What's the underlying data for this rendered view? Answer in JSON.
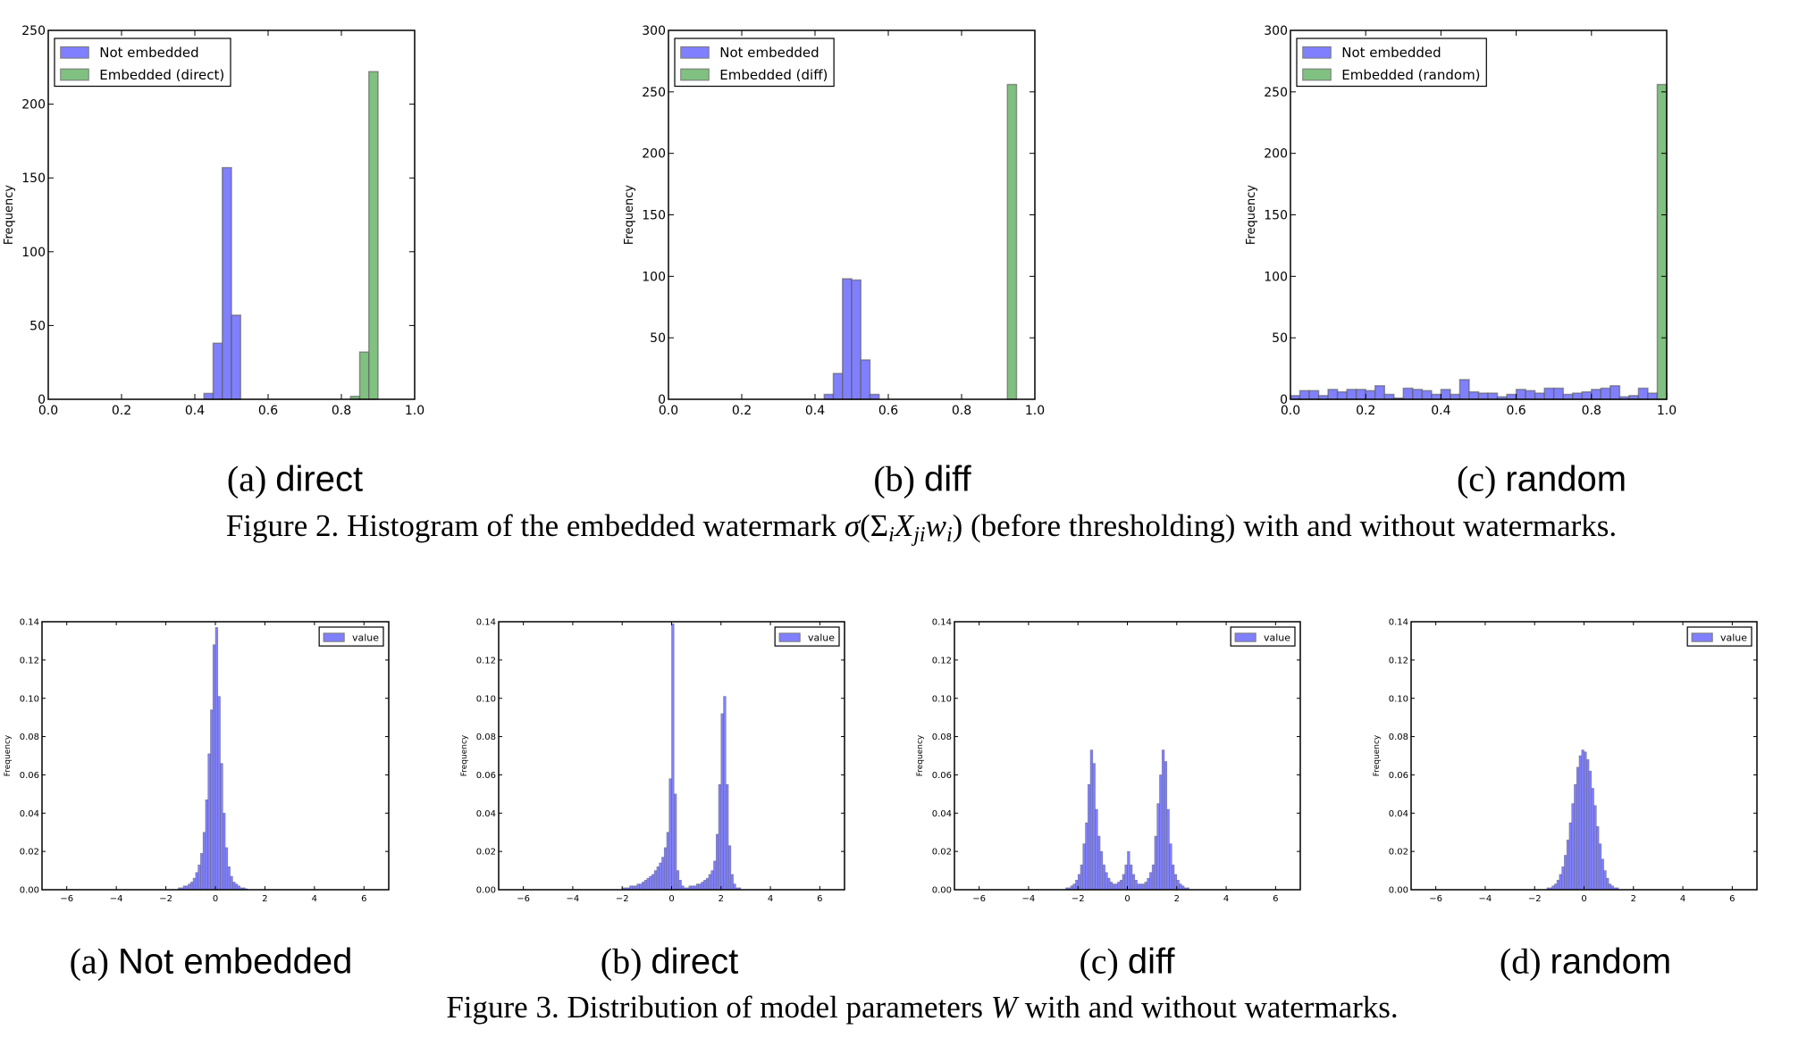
{
  "figure2": {
    "subcaptions": [
      {
        "label": "(a)",
        "text": "direct"
      },
      {
        "label": "(b)",
        "text": "diff"
      },
      {
        "label": "(c)",
        "text": "random"
      }
    ],
    "caption": {
      "prefix": "Figure 2. Histogram of the embedded watermark",
      "sigma": "σ",
      "open": "(Σ",
      "sub1": "i",
      "X": "X",
      "sub2": "ji",
      "w": "w",
      "sub3": "i",
      "close": ")",
      "suffix": "(before thresholding) with and without watermarks."
    }
  },
  "figure3": {
    "subcaptions": [
      {
        "label": "(a)",
        "text": "Not embedded"
      },
      {
        "label": "(b)",
        "text": "direct"
      },
      {
        "label": "(c)",
        "text": "diff"
      },
      {
        "label": "(d)",
        "text": "random"
      }
    ],
    "caption": {
      "prefix": "Figure 3. Distribution of model parameters",
      "W": "W",
      "suffix": "with and without watermarks."
    }
  },
  "colors": {
    "not_embedded": "#8080ff",
    "embedded": "#80c080",
    "edge": "#5a5a5a"
  },
  "chart_data": [
    {
      "type": "bar",
      "subtype": "histogram",
      "ylabel": "Frequency",
      "xlim": [
        0,
        1.0
      ],
      "ylim": [
        0,
        250
      ],
      "xticks": [
        "0.0",
        "0.2",
        "0.4",
        "0.6",
        "0.8",
        "1.0"
      ],
      "yticks": [
        "0",
        "50",
        "100",
        "150",
        "200",
        "250"
      ],
      "legend_placement": "top-left",
      "grid": false,
      "series": [
        {
          "name": "Not embedded",
          "color": "not_embedded",
          "bin_start": 0.425,
          "bin_width": 0.025,
          "values": [
            4,
            38,
            157,
            57
          ]
        },
        {
          "name": "Embedded (direct)",
          "color": "embedded",
          "bin_start": 0.825,
          "bin_width": 0.025,
          "values": [
            2,
            32,
            222
          ]
        }
      ]
    },
    {
      "type": "bar",
      "subtype": "histogram",
      "ylabel": "Frequency",
      "xlim": [
        0,
        1.0
      ],
      "ylim": [
        0,
        300
      ],
      "xticks": [
        "0.0",
        "0.2",
        "0.4",
        "0.6",
        "0.8",
        "1.0"
      ],
      "yticks": [
        "0",
        "50",
        "100",
        "150",
        "200",
        "250",
        "300"
      ],
      "legend_placement": "top-left",
      "grid": false,
      "series": [
        {
          "name": "Not embedded",
          "color": "not_embedded",
          "bin_start": 0.425,
          "bin_width": 0.025,
          "values": [
            4,
            21,
            98,
            97,
            32,
            4
          ]
        },
        {
          "name": "Embedded (diff)",
          "color": "embedded",
          "bin_start": 0.925,
          "bin_width": 0.025,
          "values": [
            256
          ]
        }
      ]
    },
    {
      "type": "bar",
      "subtype": "histogram",
      "ylabel": "Frequency",
      "xlim": [
        0,
        1.0
      ],
      "ylim": [
        0,
        300
      ],
      "xticks": [
        "0.0",
        "0.2",
        "0.4",
        "0.6",
        "0.8",
        "1.0"
      ],
      "yticks": [
        "0",
        "50",
        "100",
        "150",
        "200",
        "250",
        "300"
      ],
      "legend_placement": "top-left",
      "grid": false,
      "series": [
        {
          "name": "Not embedded",
          "color": "not_embedded",
          "bin_start": 0.0,
          "bin_width": 0.025,
          "values": [
            3,
            7,
            7,
            3,
            8,
            6,
            8,
            8,
            7,
            11,
            4,
            1,
            9,
            8,
            7,
            4,
            8,
            4,
            16,
            6,
            5,
            5,
            2,
            4,
            8,
            7,
            5,
            9,
            9,
            4,
            5,
            6,
            8,
            9,
            11,
            2,
            3,
            9,
            5,
            5
          ]
        },
        {
          "name": "Embedded (random)",
          "color": "embedded",
          "bin_start": 0.975,
          "bin_width": 0.025,
          "values": [
            256
          ]
        }
      ]
    },
    {
      "type": "bar",
      "subtype": "histogram",
      "ylabel": "Frequency",
      "xlim": [
        -7,
        7
      ],
      "ylim": [
        0,
        0.14
      ],
      "xticks": [
        "−6",
        "−4",
        "−2",
        "0",
        "2",
        "4",
        "6"
      ],
      "yticks": [
        "0.00",
        "0.02",
        "0.04",
        "0.06",
        "0.08",
        "0.10",
        "0.12",
        "0.14"
      ],
      "legend_placement": "top-right",
      "grid": false,
      "series": [
        {
          "name": "value",
          "color": "not_embedded",
          "bin_start": -1.5,
          "bin_width": 0.1,
          "values": [
            0.001,
            0.001,
            0.002,
            0.002,
            0.003,
            0.004,
            0.006,
            0.009,
            0.013,
            0.019,
            0.03,
            0.047,
            0.071,
            0.094,
            0.128,
            0.137,
            0.101,
            0.066,
            0.04,
            0.022,
            0.012,
            0.007,
            0.004,
            0.003,
            0.002,
            0.001,
            0.001,
            0.0005
          ]
        }
      ]
    },
    {
      "type": "bar",
      "subtype": "histogram",
      "ylabel": "Frequency",
      "xlim": [
        -7,
        7
      ],
      "ylim": [
        0,
        0.14
      ],
      "xticks": [
        "−6",
        "−4",
        "−2",
        "0",
        "2",
        "4",
        "6"
      ],
      "yticks": [
        "0.00",
        "0.02",
        "0.04",
        "0.06",
        "0.08",
        "0.10",
        "0.12",
        "0.14"
      ],
      "legend_placement": "top-right",
      "grid": false,
      "series": [
        {
          "name": "value",
          "color": "not_embedded",
          "bin_start": -2.0,
          "bin_width": 0.1,
          "values": [
            0.001,
            0.001,
            0.001,
            0.002,
            0.002,
            0.002,
            0.003,
            0.003,
            0.004,
            0.005,
            0.006,
            0.007,
            0.008,
            0.01,
            0.012,
            0.014,
            0.017,
            0.022,
            0.03,
            0.058,
            0.139,
            0.05,
            0.01,
            0.005,
            0.002,
            0.001,
            0.001,
            0.002,
            0.002,
            0.002,
            0.003,
            0.003,
            0.004,
            0.005,
            0.006,
            0.008,
            0.01,
            0.015,
            0.029,
            0.055,
            0.092,
            0.101,
            0.055,
            0.023,
            0.008,
            0.003,
            0.001,
            0.001
          ]
        }
      ]
    },
    {
      "type": "bar",
      "subtype": "histogram",
      "ylabel": "Frequency",
      "xlim": [
        -7,
        7
      ],
      "ylim": [
        0,
        0.14
      ],
      "xticks": [
        "−6",
        "−4",
        "−2",
        "0",
        "2",
        "4",
        "6"
      ],
      "yticks": [
        "0.00",
        "0.02",
        "0.04",
        "0.06",
        "0.08",
        "0.10",
        "0.12",
        "0.14"
      ],
      "legend_placement": "top-right",
      "grid": false,
      "series": [
        {
          "name": "value",
          "color": "not_embedded",
          "bin_start": -2.5,
          "bin_width": 0.1,
          "values": [
            0.001,
            0.001,
            0.002,
            0.003,
            0.005,
            0.008,
            0.013,
            0.024,
            0.035,
            0.055,
            0.073,
            0.066,
            0.042,
            0.028,
            0.02,
            0.013,
            0.009,
            0.006,
            0.004,
            0.003,
            0.003,
            0.004,
            0.005,
            0.008,
            0.013,
            0.02,
            0.013,
            0.008,
            0.005,
            0.003,
            0.003,
            0.003,
            0.004,
            0.006,
            0.009,
            0.013,
            0.028,
            0.045,
            0.06,
            0.073,
            0.067,
            0.042,
            0.024,
            0.013,
            0.008,
            0.005,
            0.003,
            0.002,
            0.001,
            0.001
          ]
        }
      ]
    },
    {
      "type": "bar",
      "subtype": "histogram",
      "ylabel": "Frequency",
      "xlim": [
        -7,
        7
      ],
      "ylim": [
        0,
        0.14
      ],
      "xticks": [
        "−6",
        "−4",
        "−2",
        "0",
        "2",
        "4",
        "6"
      ],
      "yticks": [
        "0.00",
        "0.02",
        "0.04",
        "0.06",
        "0.08",
        "0.10",
        "0.12",
        "0.14"
      ],
      "legend_placement": "top-right",
      "grid": false,
      "series": [
        {
          "name": "value",
          "color": "not_embedded",
          "bin_start": -1.5,
          "bin_width": 0.1,
          "values": [
            0.001,
            0.001,
            0.002,
            0.003,
            0.005,
            0.008,
            0.012,
            0.018,
            0.026,
            0.035,
            0.045,
            0.055,
            0.064,
            0.07,
            0.073,
            0.072,
            0.068,
            0.062,
            0.053,
            0.044,
            0.033,
            0.024,
            0.016,
            0.01,
            0.006,
            0.003,
            0.002,
            0.001,
            0.001
          ]
        }
      ]
    }
  ]
}
